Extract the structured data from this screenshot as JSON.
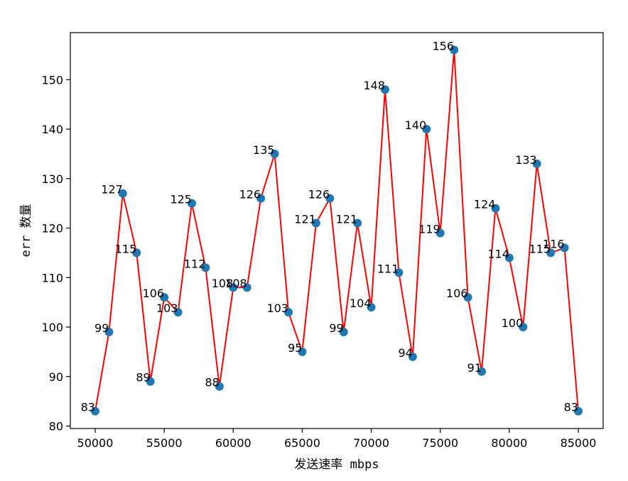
{
  "chart_data": {
    "type": "line",
    "title": "",
    "xlabel": "发送速率 mbps",
    "ylabel": "err 数量",
    "xlim": [
      48200,
      86800
    ],
    "ylim": [
      79.5,
      159.5
    ],
    "xticks": [
      50000,
      55000,
      60000,
      65000,
      70000,
      75000,
      80000,
      85000
    ],
    "yticks": [
      80,
      90,
      100,
      110,
      120,
      130,
      140,
      150
    ],
    "grid": false,
    "legend": "none",
    "line_color": "#ff0000",
    "marker_color": "#1f77b4",
    "x": [
      50000,
      51000,
      52000,
      53000,
      54000,
      55000,
      56000,
      57000,
      58000,
      59000,
      60000,
      61000,
      62000,
      63000,
      64000,
      65000,
      66000,
      67000,
      68000,
      69000,
      70000,
      71000,
      72000,
      73000,
      74000,
      75000,
      76000,
      77000,
      78000,
      79000,
      80000,
      81000,
      82000,
      83000,
      84000,
      85000
    ],
    "y": [
      83,
      99,
      127,
      115,
      89,
      106,
      103,
      125,
      112,
      88,
      108,
      108,
      126,
      135,
      103,
      95,
      121,
      126,
      99,
      121,
      104,
      148,
      111,
      94,
      140,
      119,
      156,
      106,
      91,
      124,
      114,
      100,
      133,
      115,
      116,
      83
    ]
  }
}
